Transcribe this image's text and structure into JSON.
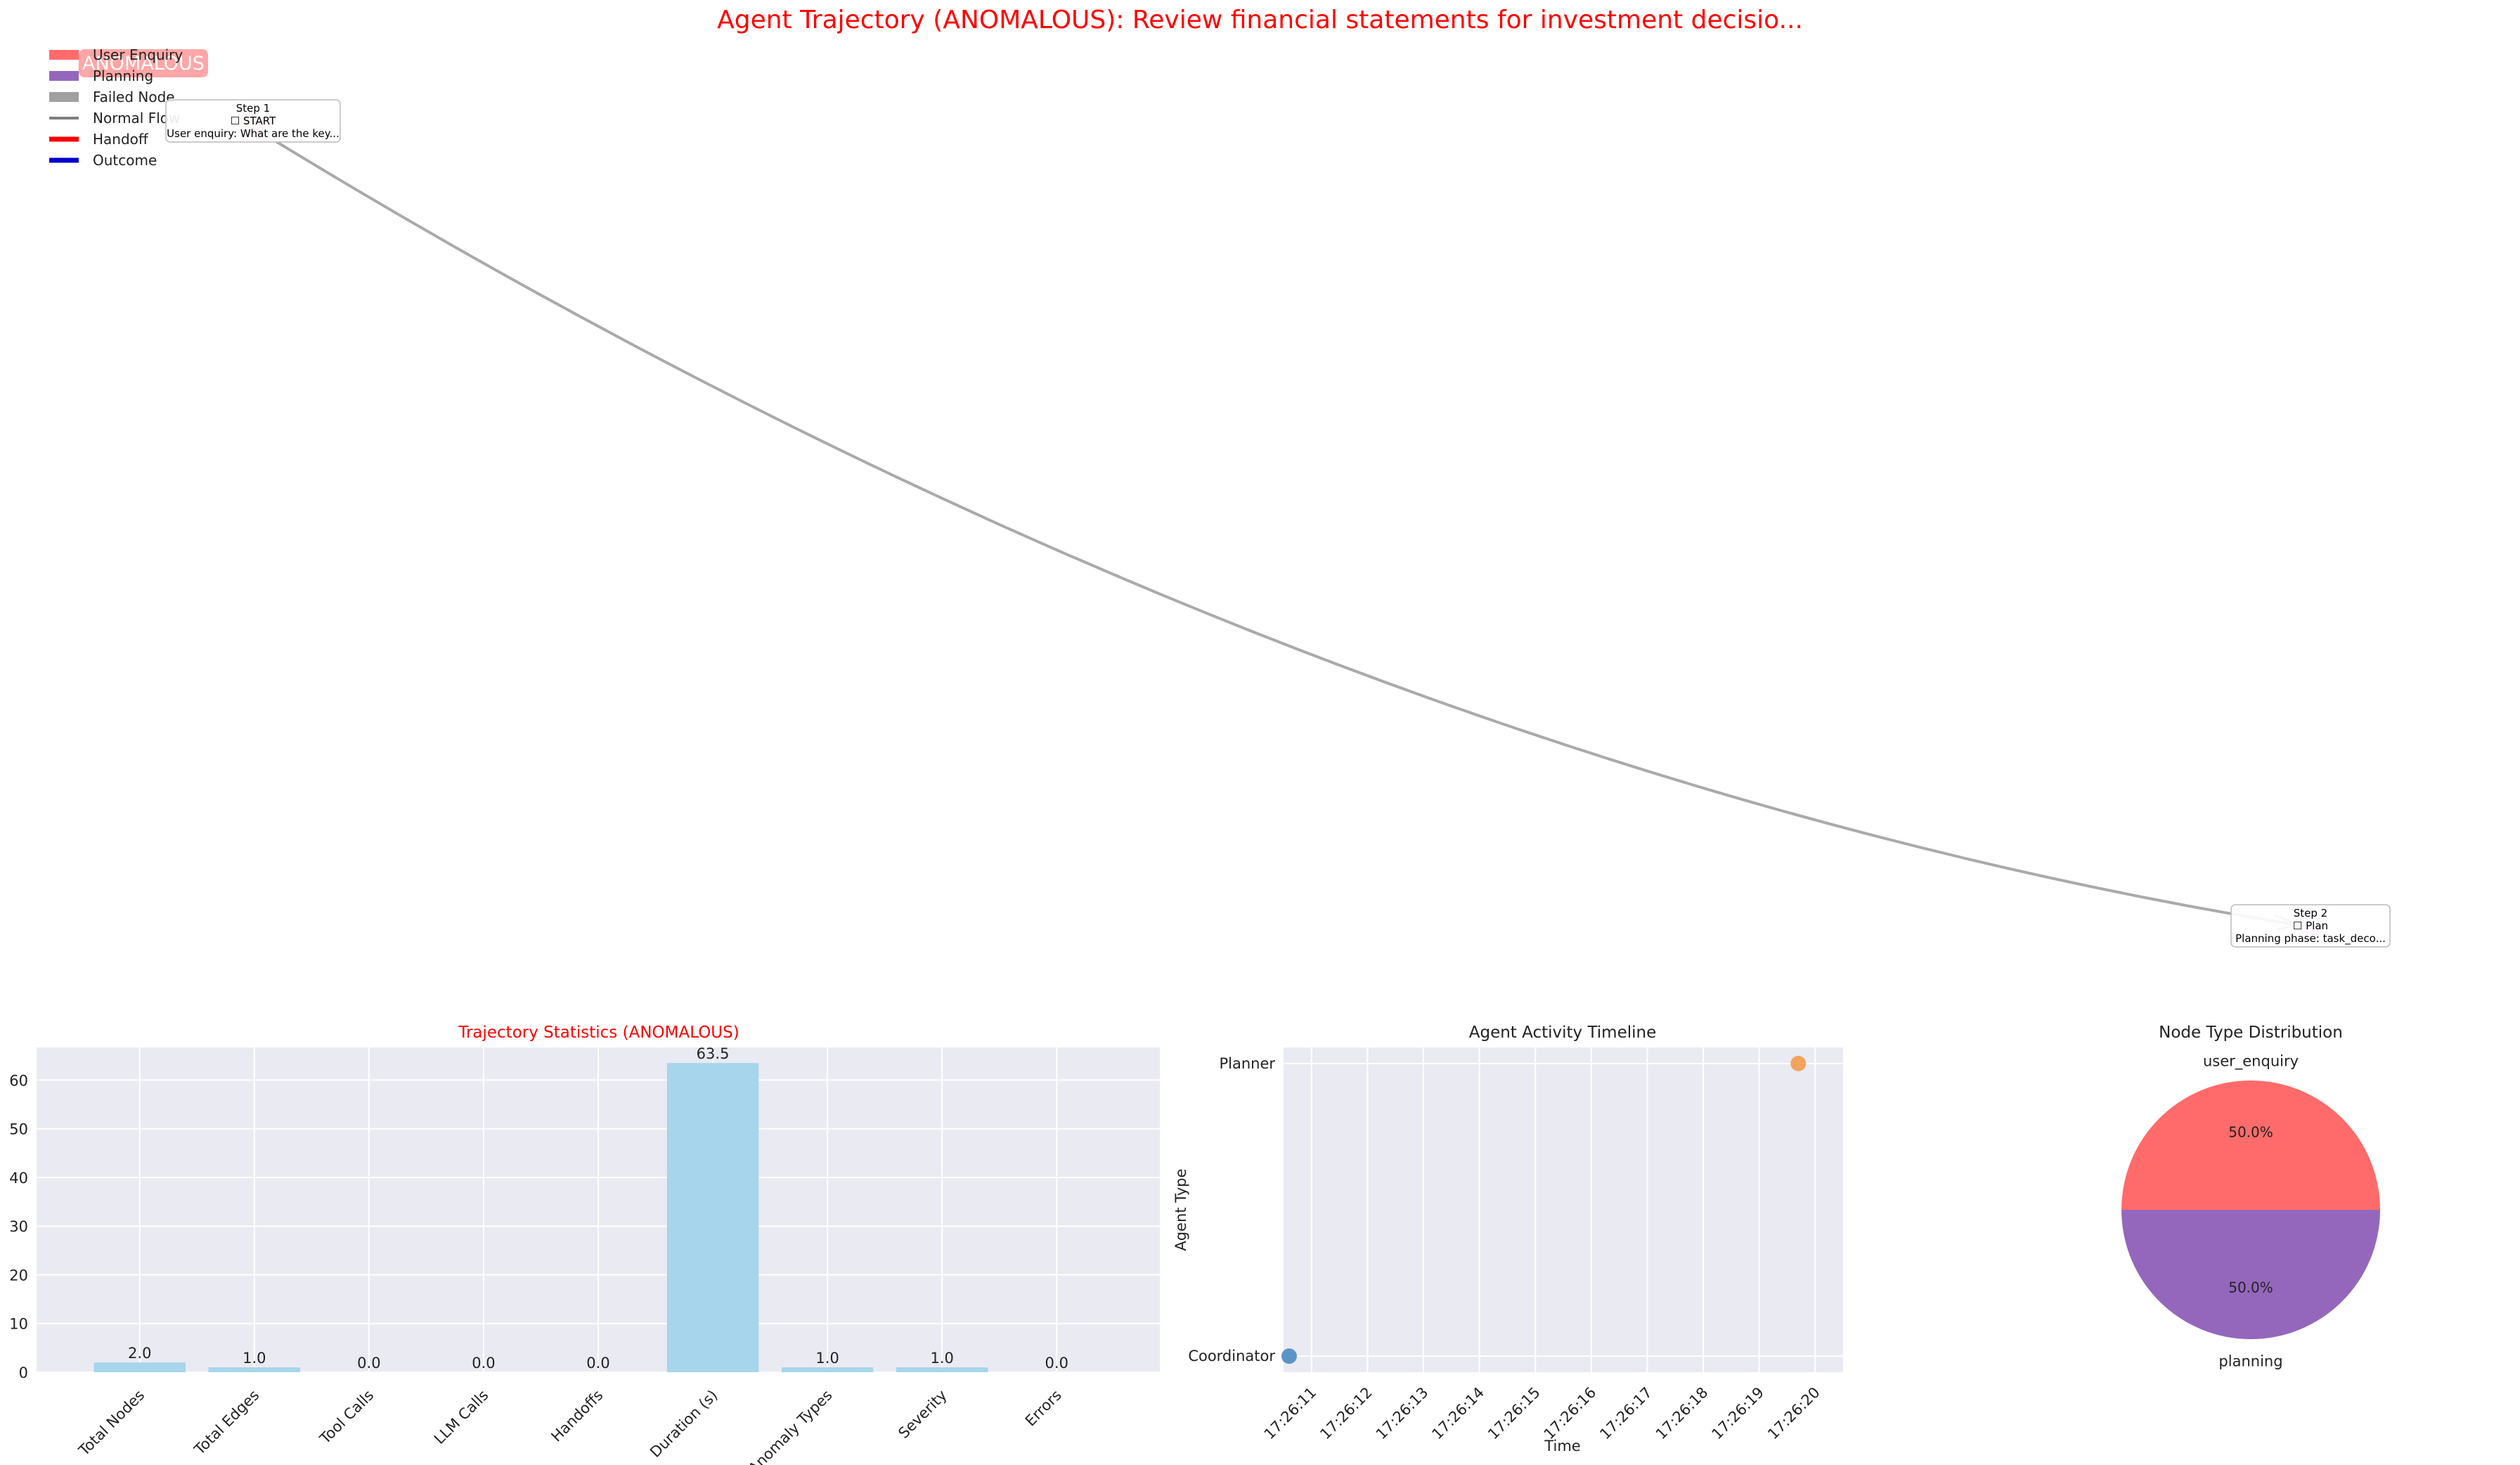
{
  "title": "Agent Trajectory (ANOMALOUS): Review financial statements for investment decisio...",
  "colors": {
    "user_enquiry": "#ff6b6b",
    "planning": "#9467bd",
    "failed": "#a0a0a0",
    "normal_flow": "#808080",
    "handoff": "#ff0000",
    "outcome": "#0000cd",
    "bar": "#a6d5ec",
    "panel_bg": "#eaeaf2",
    "coordinator": "#4c8bbf",
    "planner": "#f39c4e",
    "anomaly_red": "#ff0000"
  },
  "graph": {
    "badge": "ANOMALOUS",
    "legend": [
      {
        "label": "User Enquiry",
        "kind": "patch",
        "color_key": "user_enquiry"
      },
      {
        "label": "Planning",
        "kind": "patch",
        "color_key": "planning"
      },
      {
        "label": "Failed Node",
        "kind": "patch",
        "color_key": "failed"
      },
      {
        "label": "Normal Flow",
        "kind": "line",
        "color_key": "normal_flow"
      },
      {
        "label": "Handoff",
        "kind": "thick",
        "color_key": "handoff"
      },
      {
        "label": "Outcome",
        "kind": "thick",
        "color_key": "outcome"
      }
    ],
    "nodes": [
      {
        "step": "Step 1",
        "name": "☐ START",
        "desc": "User enquiry: What are the key..."
      },
      {
        "step": "Step 2",
        "name": "☐ Plan",
        "desc": "Planning phase: task_deco..."
      }
    ]
  },
  "chart_data": [
    {
      "type": "bar",
      "title": "Trajectory Statistics (ANOMALOUS)",
      "categories": [
        "Total Nodes",
        "Total Edges",
        "Tool Calls",
        "LLM Calls",
        "Handoffs",
        "Duration (s)",
        "Anomaly Types",
        "Severity",
        "Errors"
      ],
      "values": [
        2.0,
        1.0,
        0.0,
        0.0,
        0.0,
        63.5,
        1.0,
        1.0,
        0.0
      ],
      "value_labels": [
        "2.0",
        "1.0",
        "0.0",
        "0.0",
        "0.0",
        "63.5",
        "1.0",
        "1.0",
        "0.0"
      ],
      "ylim": [
        0,
        66.7
      ],
      "yticks": [
        0,
        10,
        20,
        30,
        40,
        50,
        60
      ],
      "grid": true
    },
    {
      "type": "scatter",
      "title": "Agent Activity Timeline",
      "xlabel": "Time",
      "ylabel": "Agent Type",
      "x_ticks": [
        "17:26:11",
        "17:26:12",
        "17:26:13",
        "17:26:14",
        "17:26:15",
        "17:26:16",
        "17:26:17",
        "17:26:18",
        "17:26:19",
        "17:26:20"
      ],
      "x_tick_seconds": [
        11,
        12,
        13,
        14,
        15,
        16,
        17,
        18,
        19,
        20
      ],
      "xlim_seconds": [
        10.5,
        20.5
      ],
      "categories": [
        "Coordinator",
        "Planner"
      ],
      "points": [
        {
          "time": "17:26:10.6",
          "seconds": 10.6,
          "agent": "Coordinator"
        },
        {
          "time": "17:26:19.7",
          "seconds": 19.7,
          "agent": "Planner"
        }
      ],
      "grid": true
    },
    {
      "type": "pie",
      "title": "Node Type Distribution",
      "labels": [
        "user_enquiry",
        "planning"
      ],
      "values": [
        50.0,
        50.0
      ],
      "pct_labels": [
        "50.0%",
        "50.0%"
      ]
    }
  ]
}
